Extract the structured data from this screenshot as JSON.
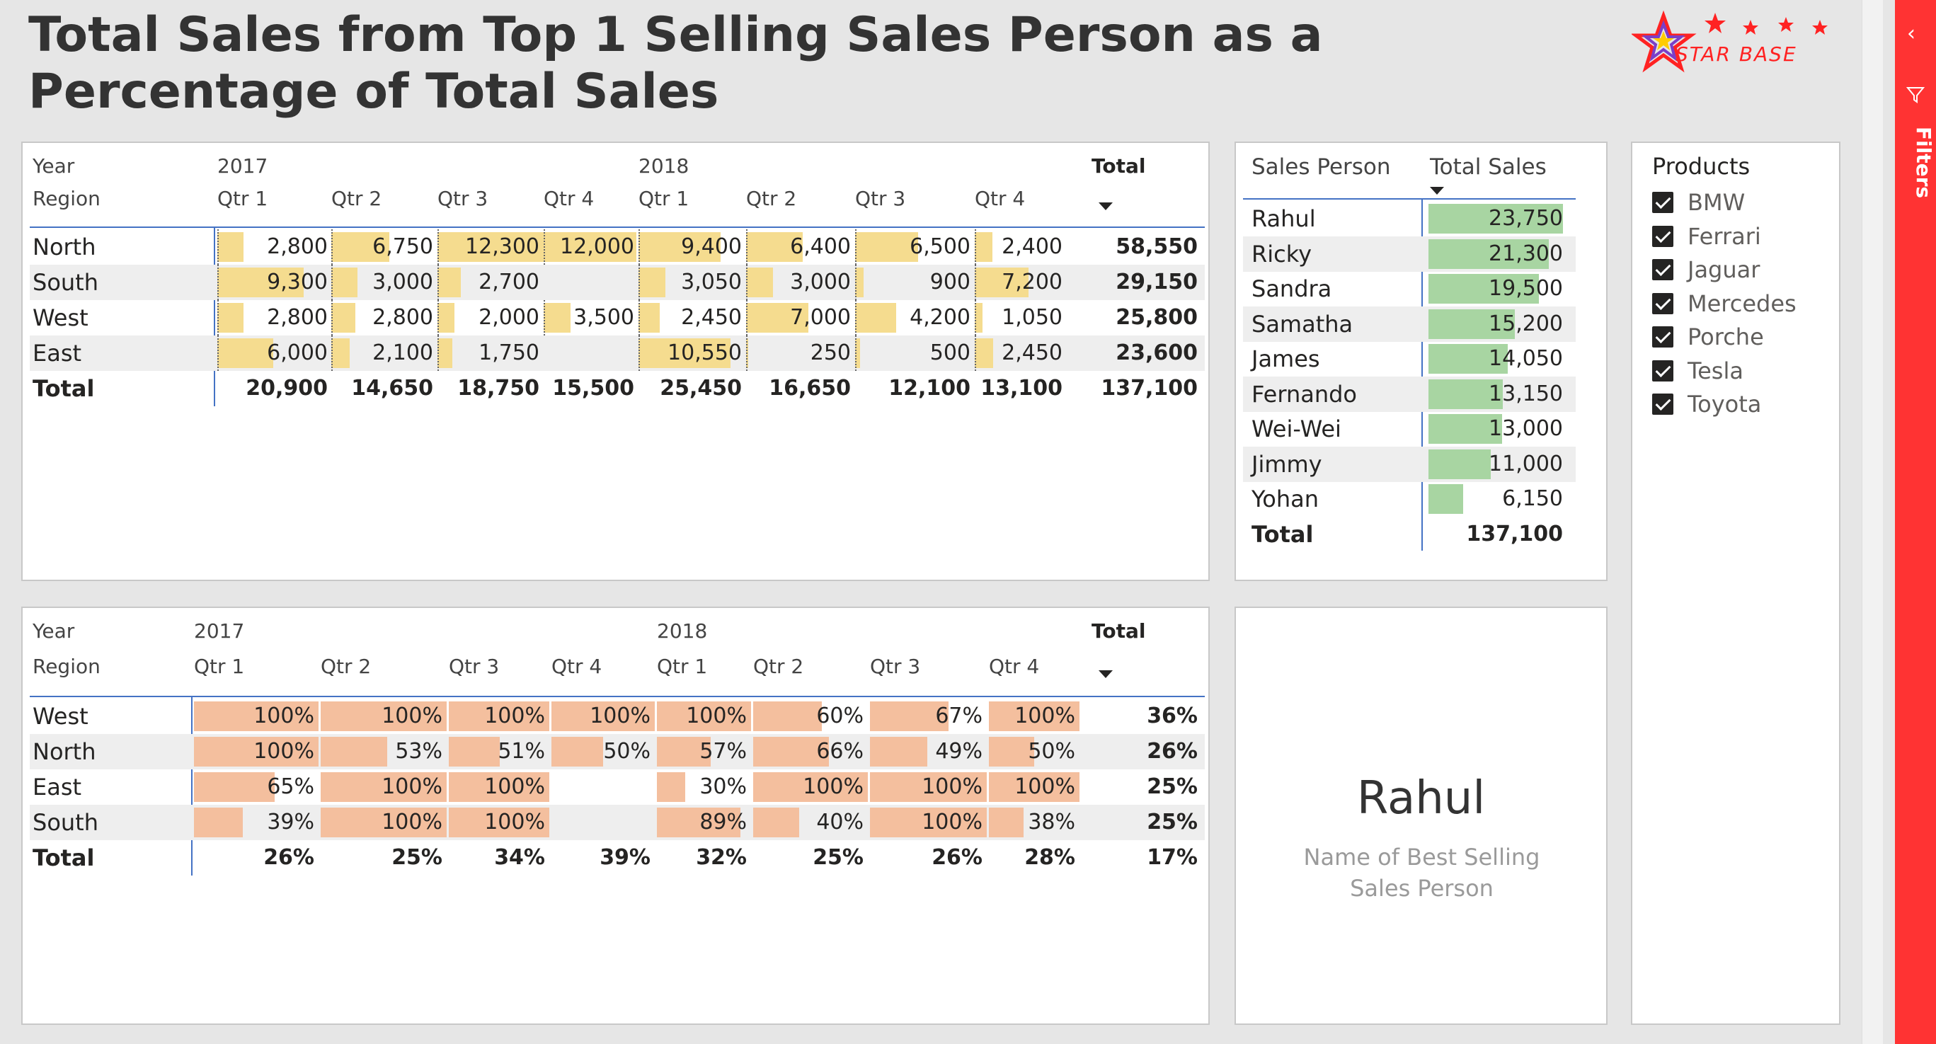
{
  "title": "Total Sales from Top 1 Selling Sales Person as a Percentage of Total Sales",
  "logo": {
    "text": "STAR BASE"
  },
  "matrix_sales": {
    "year_label": "Year",
    "region_label": "Region",
    "years": [
      "2017",
      "2018"
    ],
    "quarters": [
      "Qtr 1",
      "Qtr 2",
      "Qtr 3",
      "Qtr 4",
      "Qtr 1",
      "Qtr 2",
      "Qtr 3",
      "Qtr 4"
    ],
    "total_label": "Total",
    "bar_max": 12300,
    "rows": [
      {
        "region": "North",
        "values": [
          2800,
          6750,
          12300,
          12000,
          9400,
          6400,
          6500,
          2400
        ],
        "display": [
          "2,800",
          "6,750",
          "12,300",
          "12,000",
          "9,400",
          "6,400",
          "6,500",
          "2,400"
        ],
        "total": "58,550"
      },
      {
        "region": "South",
        "values": [
          9300,
          3000,
          2700,
          null,
          3050,
          3000,
          900,
          7200
        ],
        "display": [
          "9,300",
          "3,000",
          "2,700",
          "",
          "3,050",
          "3,000",
          "900",
          "7,200"
        ],
        "total": "29,150"
      },
      {
        "region": "West",
        "values": [
          2800,
          2800,
          2000,
          3500,
          2450,
          7000,
          4200,
          1050
        ],
        "display": [
          "2,800",
          "2,800",
          "2,000",
          "3,500",
          "2,450",
          "7,000",
          "4,200",
          "1,050"
        ],
        "total": "25,800"
      },
      {
        "region": "East",
        "values": [
          6000,
          2100,
          1750,
          null,
          10550,
          250,
          500,
          2450
        ],
        "display": [
          "6,000",
          "2,100",
          "1,750",
          "",
          "10,550",
          "250",
          "500",
          "2,450"
        ],
        "total": "23,600"
      }
    ],
    "totals_row": {
      "label": "Total",
      "values": [
        "20,900",
        "14,650",
        "18,750",
        "15,500",
        "25,450",
        "16,650",
        "12,100",
        "13,100"
      ],
      "total": "137,100"
    }
  },
  "matrix_percent": {
    "year_label": "Year",
    "region_label": "Region",
    "years": [
      "2017",
      "2018"
    ],
    "quarters": [
      "Qtr 1",
      "Qtr 2",
      "Qtr 3",
      "Qtr 4",
      "Qtr 1",
      "Qtr 2",
      "Qtr 3",
      "Qtr 4"
    ],
    "total_label": "Total",
    "rows": [
      {
        "region": "West",
        "values": [
          100,
          100,
          100,
          100,
          100,
          60,
          67,
          100
        ],
        "display": [
          "100%",
          "100%",
          "100%",
          "100%",
          "100%",
          "60%",
          "67%",
          "100%"
        ],
        "total": "36%"
      },
      {
        "region": "North",
        "values": [
          100,
          53,
          51,
          50,
          57,
          66,
          49,
          50
        ],
        "display": [
          "100%",
          "53%",
          "51%",
          "50%",
          "57%",
          "66%",
          "49%",
          "50%"
        ],
        "total": "26%"
      },
      {
        "region": "East",
        "values": [
          65,
          100,
          100,
          null,
          30,
          100,
          100,
          100
        ],
        "display": [
          "65%",
          "100%",
          "100%",
          "",
          "30%",
          "100%",
          "100%",
          "100%"
        ],
        "total": "25%"
      },
      {
        "region": "South",
        "values": [
          39,
          100,
          100,
          null,
          89,
          40,
          100,
          38
        ],
        "display": [
          "39%",
          "100%",
          "100%",
          "",
          "89%",
          "40%",
          "100%",
          "38%"
        ],
        "total": "25%"
      }
    ],
    "totals_row": {
      "label": "Total",
      "values": [
        "26%",
        "25%",
        "34%",
        "39%",
        "32%",
        "25%",
        "26%",
        "28%"
      ],
      "total": "17%"
    }
  },
  "sales_table": {
    "col_person": "Sales Person",
    "col_sales": "Total Sales",
    "bar_max": 23750,
    "rows": [
      {
        "name": "Rahul",
        "value": 23750,
        "display": "23,750"
      },
      {
        "name": "Ricky",
        "value": 21300,
        "display": "21,300"
      },
      {
        "name": "Sandra",
        "value": 19500,
        "display": "19,500"
      },
      {
        "name": "Samatha",
        "value": 15200,
        "display": "15,200"
      },
      {
        "name": "James",
        "value": 14050,
        "display": "14,050"
      },
      {
        "name": "Fernando",
        "value": 13150,
        "display": "13,150"
      },
      {
        "name": "Wei-Wei",
        "value": 13000,
        "display": "13,000"
      },
      {
        "name": "Jimmy",
        "value": 11000,
        "display": "11,000"
      },
      {
        "name": "Yohan",
        "value": 6150,
        "display": "6,150"
      }
    ],
    "total_label": "Total",
    "total_value": "137,100"
  },
  "card": {
    "value": "Rahul",
    "label": "Name of Best Selling Sales Person"
  },
  "slicer": {
    "title": "Products",
    "items": [
      {
        "label": "BMW",
        "checked": true
      },
      {
        "label": "Ferrari",
        "checked": true
      },
      {
        "label": "Jaguar",
        "checked": true
      },
      {
        "label": "Mercedes",
        "checked": true
      },
      {
        "label": "Porche",
        "checked": true
      },
      {
        "label": "Tesla",
        "checked": true
      },
      {
        "label": "Toyota",
        "checked": true
      }
    ]
  },
  "filters_pane": {
    "label": "Filters"
  },
  "colors": {
    "accent": "#ff3333",
    "bar_sales": "#f5dc8f",
    "bar_percent": "#f4bf9e",
    "bar_person": "#a8d5a2",
    "gridline": "#4472c4"
  }
}
